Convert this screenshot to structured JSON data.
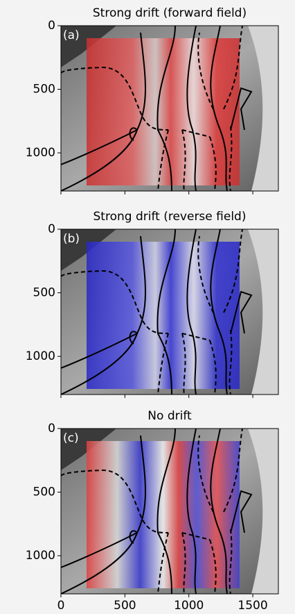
{
  "chart_data": [
    {
      "type": "heatmap",
      "title": "Strong drift (forward field)",
      "label": "(a)",
      "xlim": [
        0,
        1700
      ],
      "ylim": [
        0,
        1300
      ],
      "yticks": [
        0,
        500,
        1000
      ]
    },
    {
      "type": "heatmap",
      "title": "Strong drift (reverse field)",
      "label": "(b)",
      "xlim": [
        0,
        1700
      ],
      "ylim": [
        0,
        1300
      ],
      "yticks": [
        0,
        500,
        1000
      ]
    },
    {
      "type": "heatmap",
      "title": "No drift",
      "label": "(c)",
      "xlim": [
        0,
        1700
      ],
      "ylim": [
        0,
        1300
      ],
      "yticks": [
        0,
        500,
        1000
      ],
      "xticks": [
        0,
        500,
        1000,
        1500
      ]
    }
  ]
}
